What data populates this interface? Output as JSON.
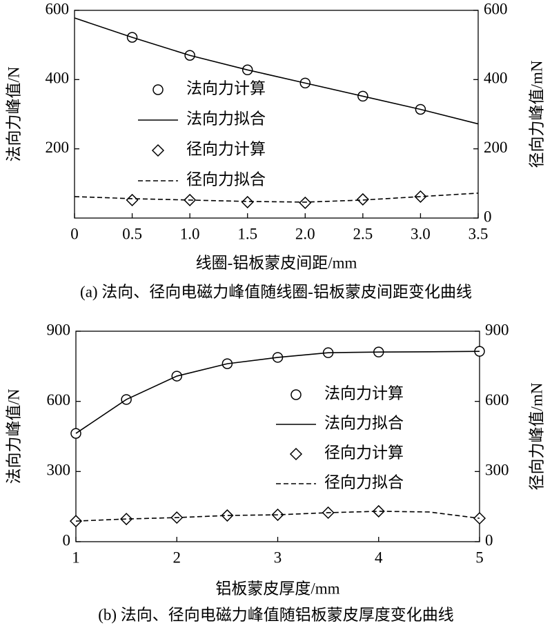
{
  "chart_data": [
    {
      "type": "line",
      "title": "(a) 法向、径向电磁力峰值随线圈-铝板蒙皮间距变化曲线",
      "xlabel": "线圈-铝板蒙皮间距/mm",
      "ylabel": "法向力峰值/N",
      "y2label": "径向力峰值/mN",
      "xlim": [
        0,
        3.5
      ],
      "xticks": [
        0,
        0.5,
        {
          "value": 1,
          "label": "1.0"
        },
        1.5,
        {
          "value": 2,
          "label": "2.0"
        },
        2.5,
        {
          "value": 3,
          "label": "3.0"
        },
        3.5
      ],
      "ylim": [
        0,
        600
      ],
      "yticks": [
        200,
        400,
        600
      ],
      "y2lim": [
        0,
        600
      ],
      "y2ticks": [
        0,
        200,
        400,
        600
      ],
      "legend": "center",
      "series": [
        {
          "name": "法向力计算",
          "style": "circle",
          "color": "#000000",
          "x": [
            0.5,
            1,
            1.5,
            2,
            2.5,
            3
          ],
          "values": [
            522,
            470,
            428,
            390,
            352,
            314
          ]
        },
        {
          "name": "法向力拟合",
          "style": "solid",
          "color": "#000000",
          "x": [
            0,
            0.5,
            1,
            1.5,
            2,
            2.5,
            3,
            3.5
          ],
          "values": [
            578,
            522,
            470,
            428,
            390,
            352,
            314,
            272
          ]
        },
        {
          "name": "径向力计算",
          "style": "diamond",
          "color": "#000000",
          "axis": "y2",
          "x": [
            0.5,
            1,
            1.5,
            2,
            2.5,
            3
          ],
          "values": [
            52,
            52,
            46,
            44,
            54,
            62
          ]
        },
        {
          "name": "径向力拟合",
          "style": "dashed",
          "color": "#000000",
          "axis": "y2",
          "x": [
            0,
            0.5,
            1,
            1.5,
            2,
            2.5,
            3,
            3.5
          ],
          "values": [
            62,
            56,
            52,
            48,
            46,
            52,
            62,
            72
          ]
        }
      ]
    },
    {
      "type": "line",
      "title": "(b) 法向、径向电磁力峰值随铝板蒙皮厚度变化曲线",
      "xlabel": "铝板蒙皮厚度/mm",
      "ylabel": "法向力峰值/N",
      "y2label": "径向力峰值/mN",
      "xlim": [
        1,
        5
      ],
      "xticks": [
        1,
        2,
        3,
        4,
        5
      ],
      "ylim": [
        0,
        900
      ],
      "yticks": [
        0,
        300,
        600,
        900
      ],
      "y2lim": [
        0,
        900
      ],
      "y2ticks": [
        0,
        300,
        600,
        900
      ],
      "legend": "center right",
      "series": [
        {
          "name": "法向力计算",
          "style": "circle",
          "color": "#000000",
          "x": [
            1,
            1.5,
            2,
            2.5,
            3,
            3.5,
            4,
            5
          ],
          "values": [
            463,
            608,
            708,
            761,
            788,
            808,
            811,
            814
          ]
        },
        {
          "name": "法向力拟合",
          "style": "solid",
          "color": "#000000",
          "x": [
            1,
            1.5,
            2,
            2.5,
            3,
            3.5,
            4,
            4.5,
            5
          ],
          "values": [
            463,
            608,
            708,
            761,
            788,
            808,
            811,
            812,
            814
          ]
        },
        {
          "name": "径向力计算",
          "style": "diamond",
          "color": "#000000",
          "axis": "y2",
          "x": [
            1,
            1.5,
            2,
            2.5,
            3,
            3.5,
            4,
            5
          ],
          "values": [
            88,
            97,
            103,
            112,
            115,
            124,
            130,
            100
          ]
        },
        {
          "name": "径向力拟合",
          "style": "dashed",
          "color": "#000000",
          "axis": "y2",
          "x": [
            1,
            1.5,
            2,
            2.5,
            3,
            3.5,
            4,
            4.5,
            5
          ],
          "values": [
            88,
            97,
            103,
            112,
            115,
            124,
            130,
            127,
            100
          ]
        }
      ]
    }
  ]
}
